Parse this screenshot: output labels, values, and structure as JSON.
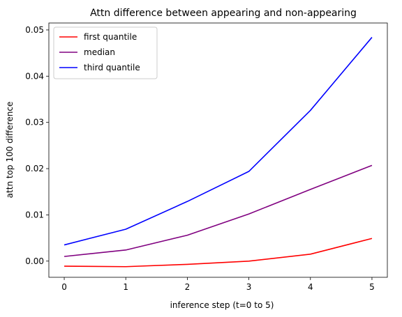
{
  "chart_data": {
    "type": "line",
    "title": "Attn difference between appearing and non-appearing",
    "xlabel": "inference step (t=0 to 5)",
    "ylabel": "attn top 100 difference",
    "x": [
      0,
      1,
      2,
      3,
      4,
      5
    ],
    "xticks": [
      "0",
      "1",
      "2",
      "3",
      "4",
      "5"
    ],
    "yticks": [
      "0.00",
      "0.01",
      "0.02",
      "0.03",
      "0.04",
      "0.05"
    ],
    "ytick_values": [
      0.0,
      0.01,
      0.02,
      0.03,
      0.04,
      0.05
    ],
    "xlim": [
      -0.25,
      5.25
    ],
    "ylim": [
      -0.0035,
      0.0515
    ],
    "grid": false,
    "legend_position": "upper-left",
    "series": [
      {
        "name": "first quantile",
        "color": "#ff0000",
        "values": [
          -0.0011,
          -0.0012,
          -0.0007,
          0.0,
          0.0015,
          0.0049
        ]
      },
      {
        "name": "median",
        "color": "#800080",
        "values": [
          0.001,
          0.0024,
          0.0056,
          0.0102,
          0.0155,
          0.0207
        ]
      },
      {
        "name": "third quantile",
        "color": "#0000ff",
        "values": [
          0.0035,
          0.0069,
          0.0129,
          0.0194,
          0.0326,
          0.0484
        ]
      }
    ]
  }
}
